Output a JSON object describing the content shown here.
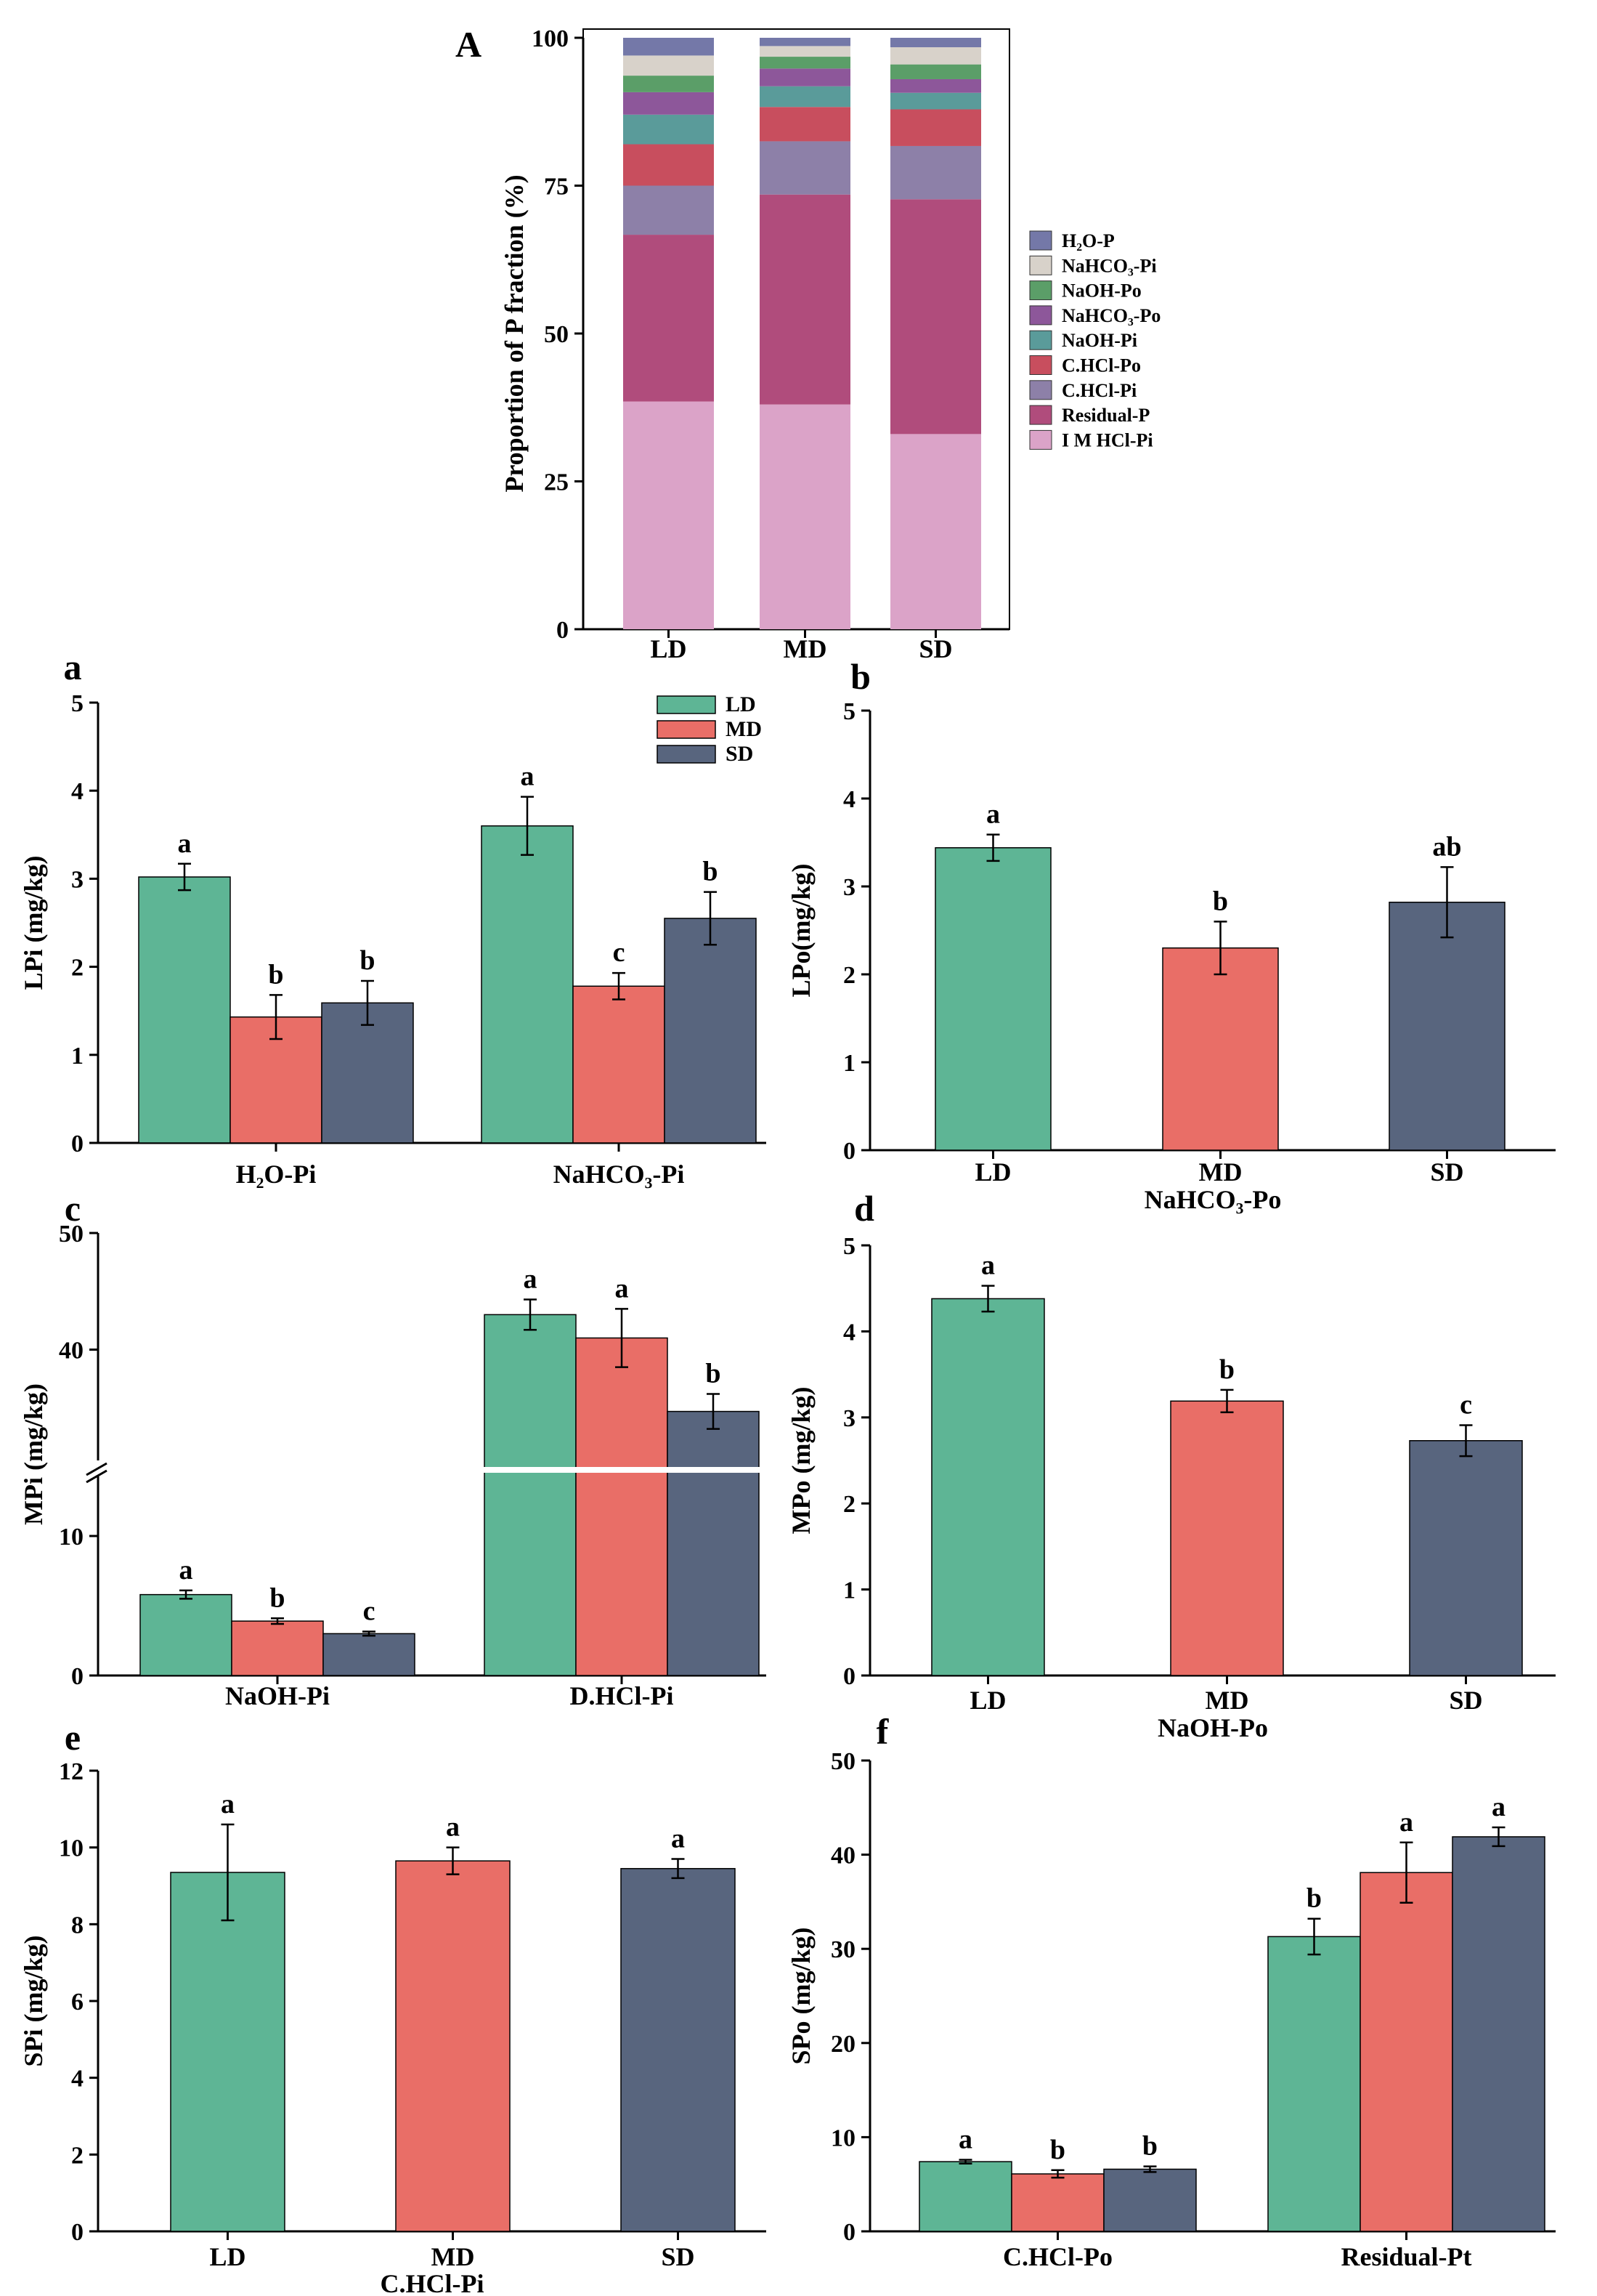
{
  "colors": {
    "LD": "#5eb595",
    "MD": "#e96e67",
    "SD": "#58657e"
  },
  "chart_data": [
    {
      "id": "A",
      "panel_label": "A",
      "type": "bar",
      "stacked": true,
      "ylabel": "Proportion of P fraction (%)",
      "ylim": [
        0,
        100
      ],
      "yticks": [
        "0",
        "25",
        "50",
        "75",
        "100"
      ],
      "categories": [
        "LD",
        "MD",
        "SD"
      ],
      "legend_position": "right",
      "series": [
        {
          "name": "I M HCl-Pi",
          "color": "#dba3c8",
          "values": [
            38.5,
            38.0,
            33.0
          ]
        },
        {
          "name": "Residual-P",
          "color": "#b04c7c",
          "values": [
            28.2,
            35.5,
            39.7
          ]
        },
        {
          "name": "C.HCl-Pi",
          "color": "#8d80a8",
          "values": [
            8.3,
            9.0,
            9.0
          ]
        },
        {
          "name": "C.HCl-Po",
          "color": "#c84e5e",
          "values": [
            7.0,
            5.8,
            6.2
          ]
        },
        {
          "name": "NaOH-Pi",
          "color": "#5a9b9a",
          "values": [
            5.0,
            3.5,
            2.8
          ]
        },
        {
          "name": "NaHCO₃-Po",
          "color": "#8d579a",
          "values": [
            3.8,
            3.0,
            2.3
          ]
        },
        {
          "name": "NaOH-Po",
          "color": "#5b9e68",
          "values": [
            2.8,
            2.0,
            2.5
          ]
        },
        {
          "name": "NaHCO₃-Pi",
          "color": "#d8d2ca",
          "values": [
            3.4,
            1.8,
            2.9
          ]
        },
        {
          "name": "H₂O-P",
          "color": "#7478a8",
          "values": [
            3.0,
            1.4,
            1.6
          ]
        }
      ]
    },
    {
      "id": "a",
      "panel_label": "a",
      "type": "bar",
      "ylabel": "LPi (mg/kg)",
      "ylim": [
        0,
        5
      ],
      "yticks": [
        "0",
        "1",
        "2",
        "3",
        "4",
        "5"
      ],
      "categories": [
        "H₂O-Pi",
        "NaHCO₃-Pi"
      ],
      "legend_position": "top-center",
      "series": [
        {
          "name": "LD",
          "values": [
            3.02,
            3.6
          ],
          "errors": [
            0.15,
            0.33
          ],
          "letters": [
            "a",
            "a"
          ]
        },
        {
          "name": "MD",
          "values": [
            1.43,
            1.78
          ],
          "errors": [
            0.25,
            0.15
          ],
          "letters": [
            "b",
            "c"
          ]
        },
        {
          "name": "SD",
          "values": [
            1.59,
            2.55
          ],
          "errors": [
            0.25,
            0.3
          ],
          "letters": [
            "b",
            "b"
          ]
        }
      ]
    },
    {
      "id": "b",
      "panel_label": "b",
      "type": "bar",
      "ylabel": "LPo(mg/kg)",
      "xlabel": "NaHCO₃-Po",
      "ylim": [
        0,
        5
      ],
      "yticks": [
        "0",
        "1",
        "2",
        "3",
        "4",
        "5"
      ],
      "categories": [
        "LD",
        "MD",
        "SD"
      ],
      "values": [
        3.44,
        2.3,
        2.82
      ],
      "errors": [
        0.15,
        0.3,
        0.4
      ],
      "letters": [
        "a",
        "b",
        "ab"
      ]
    },
    {
      "id": "c",
      "panel_label": "c",
      "type": "bar",
      "ylabel": "MPi (mg/kg)",
      "broken_axis": true,
      "yticks": [
        "0",
        "10",
        "40",
        "50"
      ],
      "categories": [
        "NaOH-Pi",
        "D.HCl-Pi"
      ],
      "series": [
        {
          "name": "LD",
          "values": [
            5.8,
            43.0
          ],
          "errors": [
            0.3,
            1.3
          ],
          "letters": [
            "a",
            "a"
          ]
        },
        {
          "name": "MD",
          "values": [
            3.9,
            41.0
          ],
          "errors": [
            0.2,
            2.5
          ],
          "letters": [
            "b",
            "a"
          ]
        },
        {
          "name": "SD",
          "values": [
            3.0,
            34.7
          ],
          "errors": [
            0.15,
            1.5
          ],
          "letters": [
            "c",
            "b"
          ]
        }
      ]
    },
    {
      "id": "d",
      "panel_label": "d",
      "type": "bar",
      "ylabel": "MPo (mg/kg)",
      "xlabel": "NaOH-Po",
      "ylim": [
        0,
        5
      ],
      "yticks": [
        "0",
        "1",
        "2",
        "3",
        "4",
        "5"
      ],
      "categories": [
        "LD",
        "MD",
        "SD"
      ],
      "values": [
        4.38,
        3.19,
        2.73
      ],
      "errors": [
        0.15,
        0.13,
        0.18
      ],
      "letters": [
        "a",
        "b",
        "c"
      ]
    },
    {
      "id": "e",
      "panel_label": "e",
      "type": "bar",
      "ylabel": "SPi (mg/kg)",
      "xlabel": "C.HCl-Pi",
      "ylim": [
        0,
        12
      ],
      "yticks": [
        "0",
        "2",
        "4",
        "6",
        "8",
        "10",
        "12"
      ],
      "categories": [
        "LD",
        "MD",
        "SD"
      ],
      "values": [
        9.35,
        9.65,
        9.45
      ],
      "errors": [
        1.25,
        0.35,
        0.25
      ],
      "letters": [
        "a",
        "a",
        "a"
      ]
    },
    {
      "id": "f",
      "panel_label": "f",
      "type": "bar",
      "ylabel": "SPo (mg/kg)",
      "ylim": [
        0,
        50
      ],
      "yticks": [
        "0",
        "10",
        "20",
        "30",
        "40",
        "50"
      ],
      "categories": [
        "C.HCl-Po",
        "Residual-Pt"
      ],
      "series": [
        {
          "name": "LD",
          "values": [
            7.4,
            31.3
          ],
          "errors": [
            0.2,
            1.9
          ],
          "letters": [
            "a",
            "b"
          ]
        },
        {
          "name": "MD",
          "values": [
            6.1,
            38.1
          ],
          "errors": [
            0.4,
            3.2
          ],
          "letters": [
            "b",
            "a"
          ]
        },
        {
          "name": "SD",
          "values": [
            6.6,
            41.9
          ],
          "errors": [
            0.3,
            1.0
          ],
          "letters": [
            "b",
            "a"
          ]
        }
      ]
    }
  ]
}
